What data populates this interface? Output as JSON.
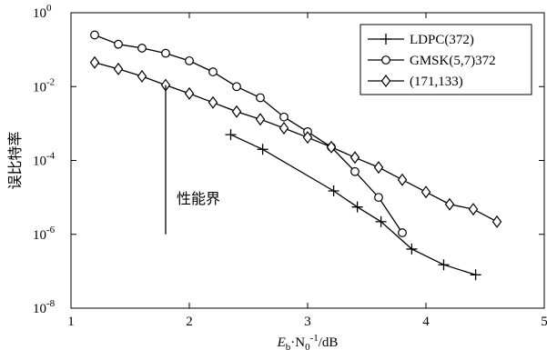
{
  "chart_data": {
    "type": "line",
    "xlabel": "E_b·N_0^-1/dB",
    "ylabel": "误比特率",
    "x_scale": "linear",
    "y_scale": "log",
    "xlim": [
      1,
      5
    ],
    "ylim": [
      1e-08,
      1
    ],
    "x_ticks": [
      1,
      2,
      3,
      4,
      5
    ],
    "y_ticks": [
      {
        "value": 1,
        "base": "10",
        "exp": "0"
      },
      {
        "value": 0.01,
        "base": "10",
        "exp": "-2"
      },
      {
        "value": 0.0001,
        "base": "10",
        "exp": "-4"
      },
      {
        "value": 1e-06,
        "base": "10",
        "exp": "-6"
      },
      {
        "value": 1e-08,
        "base": "10",
        "exp": "-8"
      }
    ],
    "grid": false,
    "legend_position": "top-right",
    "series": [
      {
        "name": "LDPC(372)",
        "marker": "plus",
        "points": [
          [
            2.35,
            0.0005
          ],
          [
            2.62,
            0.0002
          ],
          [
            3.22,
            1.5e-05
          ],
          [
            3.42,
            5.5e-06
          ],
          [
            3.62,
            2.2e-06
          ],
          [
            3.88,
            4e-07
          ],
          [
            4.15,
            1.5e-07
          ],
          [
            4.42,
            8e-08
          ]
        ]
      },
      {
        "name": "GMSK(5,7)372",
        "marker": "circle",
        "points": [
          [
            1.2,
            0.25
          ],
          [
            1.4,
            0.14
          ],
          [
            1.6,
            0.11
          ],
          [
            1.8,
            0.08
          ],
          [
            2.0,
            0.05
          ],
          [
            2.2,
            0.025
          ],
          [
            2.4,
            0.01
          ],
          [
            2.6,
            0.005
          ],
          [
            2.8,
            0.0015
          ],
          [
            3.0,
            0.0006
          ],
          [
            3.2,
            0.00023
          ],
          [
            3.4,
            5e-05
          ],
          [
            3.6,
            1e-05
          ],
          [
            3.8,
            1.1e-06
          ]
        ]
      },
      {
        "name": "(171,133)",
        "marker": "diamond",
        "points": [
          [
            1.2,
            0.045
          ],
          [
            1.4,
            0.03
          ],
          [
            1.6,
            0.019
          ],
          [
            1.8,
            0.011
          ],
          [
            2.0,
            0.0065
          ],
          [
            2.2,
            0.0037
          ],
          [
            2.4,
            0.0021
          ],
          [
            2.6,
            0.0013
          ],
          [
            2.8,
            0.00075
          ],
          [
            3.0,
            0.00042
          ],
          [
            3.2,
            0.00023
          ],
          [
            3.4,
            0.00012
          ],
          [
            3.6,
            6.5e-05
          ],
          [
            3.8,
            3e-05
          ],
          [
            4.0,
            1.4e-05
          ],
          [
            4.2,
            6.5e-06
          ],
          [
            4.4,
            4.8e-06
          ],
          [
            4.6,
            2.2e-06
          ]
        ]
      }
    ],
    "annotations": [
      {
        "text": "性能界",
        "line_x": 1.8,
        "line_y_top": 0.011,
        "line_y_bottom": 1e-06
      }
    ]
  }
}
